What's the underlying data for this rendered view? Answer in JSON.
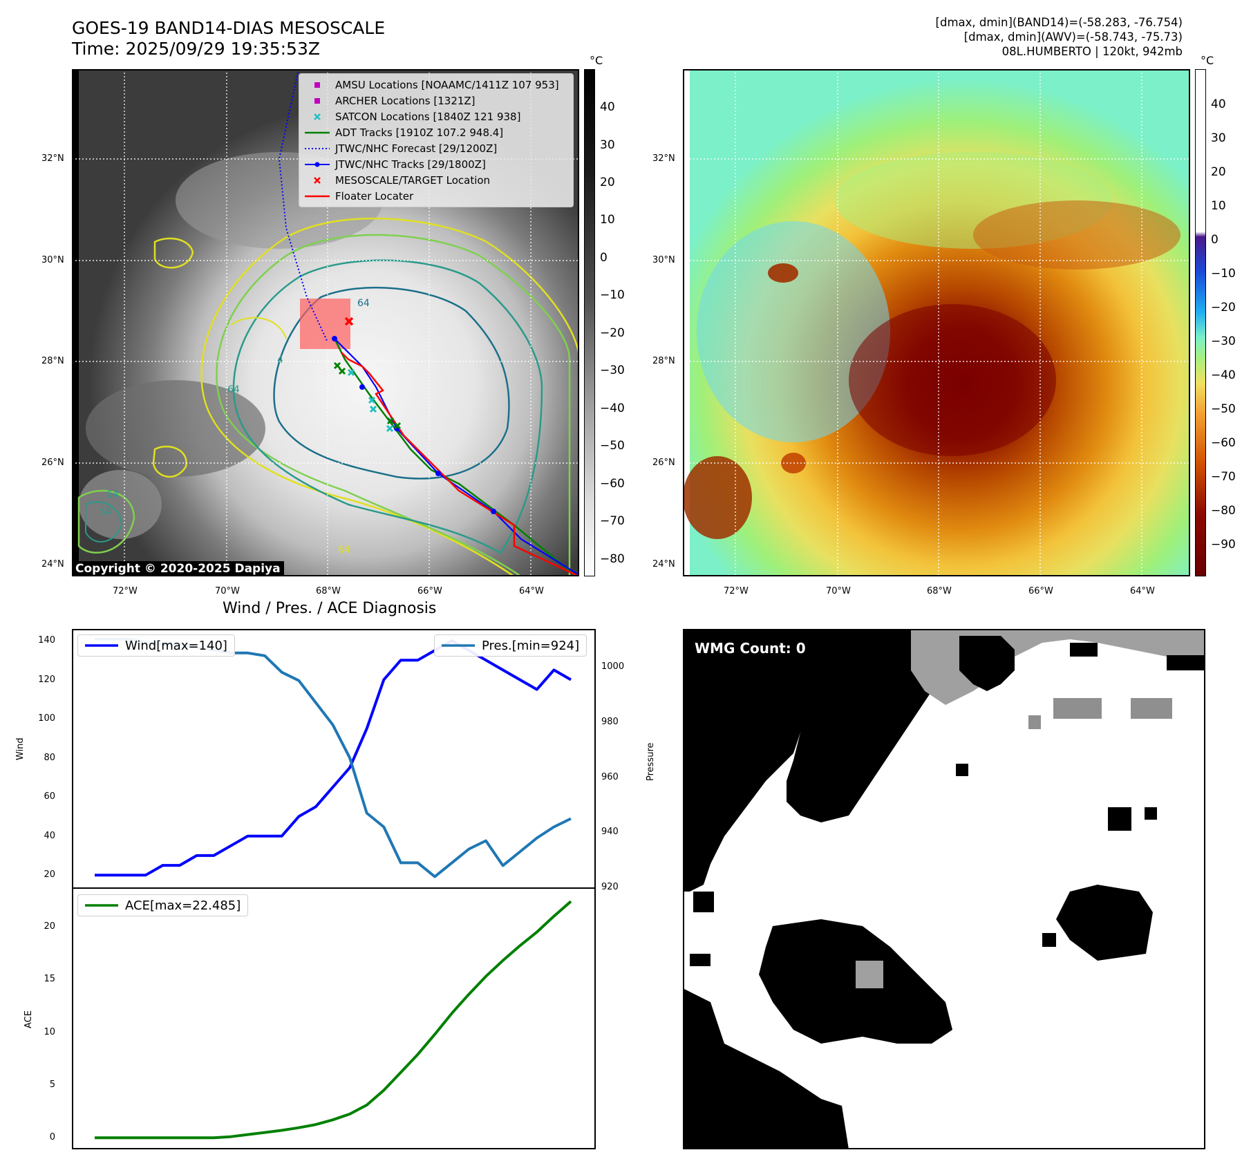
{
  "header": {
    "title_line1": "GOES-19 BAND14-DIAS MESOSCALE",
    "title_line2": "Time: 2025/09/29 19:35:53Z",
    "info_line1": "[dmax, dmin](BAND14)=(-58.283, -76.754)",
    "info_line2": "[dmax, dmin](AWV)=(-58.743, -75.73)",
    "info_line3": "08L.HUMBERTO | 120kt, 942mb"
  },
  "maps": {
    "lat_labels": [
      "32°N",
      "30°N",
      "28°N",
      "26°N",
      "24°N"
    ],
    "lon_labels_left": [
      "72°W",
      "70°W",
      "68°W",
      "66°W",
      "64°W"
    ],
    "lon_labels_right": [
      "72°W",
      "70°W",
      "68°W",
      "66°W",
      "64°W"
    ],
    "copyright": "Copyright © 2020-2025 Dapiya",
    "contour_labels": [
      "64",
      "64",
      "64",
      "54",
      "64",
      "4"
    ]
  },
  "colorbar_left": {
    "unit": "°C",
    "ticks": [
      "40",
      "30",
      "20",
      "10",
      "0",
      "−10",
      "−20",
      "−30",
      "−40",
      "−50",
      "−60",
      "−70",
      "−80"
    ]
  },
  "colorbar_right": {
    "unit": "°C",
    "ticks": [
      "40",
      "30",
      "20",
      "10",
      "0",
      "−10",
      "−20",
      "−30",
      "−40",
      "−50",
      "−60",
      "−70",
      "−80",
      "−90"
    ]
  },
  "legend": {
    "items": [
      {
        "label": "AMSU Locations [NOAAMC/1411Z 107 953]",
        "symbol": "square",
        "color": "#c000c0"
      },
      {
        "label": "ARCHER Locations [1321Z]",
        "symbol": "square",
        "color": "#c000c0"
      },
      {
        "label": "SATCON Locations [1840Z 121 938]",
        "symbol": "x",
        "color": "#20c0c0"
      },
      {
        "label": "ADT Tracks [1910Z 107.2 948.4]",
        "symbol": "line",
        "color": "#008000"
      },
      {
        "label": "JTWC/NHC Forecast [29/1200Z]",
        "symbol": "dotted",
        "color": "#0000ff"
      },
      {
        "label": "JTWC/NHC Tracks [29/1800Z]",
        "symbol": "line-dot",
        "color": "#0000ff"
      },
      {
        "label": "MESOSCALE/TARGET Location",
        "symbol": "x",
        "color": "#ff0000"
      },
      {
        "label": "Floater Locater",
        "symbol": "line",
        "color": "#ff0000"
      }
    ]
  },
  "wmg": {
    "label": "WMG Count: 0"
  },
  "chart_data": [
    {
      "type": "line",
      "title": "Wind / Pres. / ACE Diagnosis",
      "ylabel": "Wind",
      "y2label": "Pressure",
      "ylim": [
        13,
        146
      ],
      "y2lim": [
        919.6,
        1013.7
      ],
      "yticks": [
        "20",
        "40",
        "60",
        "80",
        "100",
        "120",
        "140"
      ],
      "y2ticks": [
        "920",
        "940",
        "960",
        "980",
        "1000"
      ],
      "series": [
        {
          "name": "Wind[max=140]",
          "axis": "left",
          "color": "#0000ff",
          "values": [
            20,
            20,
            20,
            20,
            25,
            25,
            30,
            30,
            35,
            40,
            40,
            40,
            50,
            55,
            65,
            75,
            95,
            120,
            130,
            130,
            135,
            140,
            135,
            130,
            125,
            120,
            115,
            125,
            120
          ]
        },
        {
          "name": "Pres.[min=924]",
          "axis": "right",
          "color": "#1f77b4",
          "values": [
            1010,
            1010,
            1010,
            1009,
            1008,
            1008,
            1007,
            1006,
            1005,
            1005,
            1004,
            998,
            995,
            987,
            979,
            967,
            947,
            942,
            929,
            929,
            924,
            929,
            934,
            937,
            928,
            933,
            938,
            942,
            945
          ]
        }
      ]
    },
    {
      "type": "line",
      "ylabel": "ACE",
      "ylim": [
        -1.1,
        23.6
      ],
      "yticks": [
        "0",
        "5",
        "10",
        "15",
        "20"
      ],
      "series": [
        {
          "name": "ACE[max=22.485]",
          "color": "#008000",
          "values": [
            0,
            0,
            0,
            0,
            0,
            0,
            0,
            0,
            0.1,
            0.3,
            0.5,
            0.7,
            0.95,
            1.25,
            1.7,
            2.25,
            3.1,
            4.5,
            6.2,
            7.9,
            9.8,
            11.8,
            13.6,
            15.3,
            16.8,
            18.2,
            19.5,
            21,
            22.4
          ]
        }
      ]
    }
  ]
}
